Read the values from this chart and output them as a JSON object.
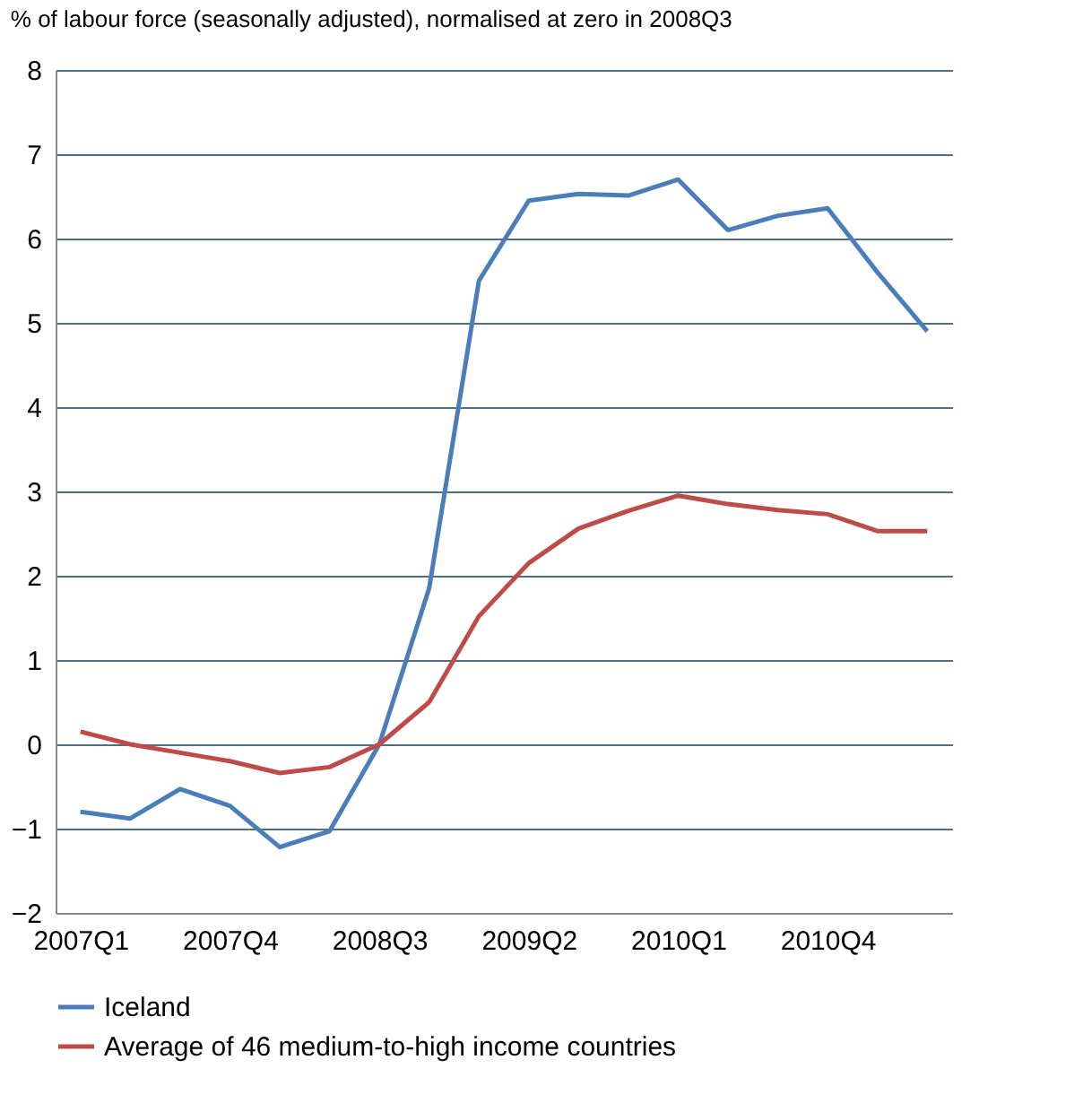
{
  "chart_data": {
    "type": "line",
    "ylabel": "% of labour force (seasonally adjusted), normalised at zero in 2008Q3",
    "categories": [
      "2007Q1",
      null,
      null,
      "2007Q4",
      null,
      null,
      "2008Q3",
      null,
      null,
      "2009Q2",
      null,
      null,
      "2010Q1",
      null,
      null,
      "2010Q4",
      null,
      null
    ],
    "series": [
      {
        "name": "Iceland",
        "color": "#4a7ebb",
        "values": [
          -0.8,
          -0.88,
          -0.53,
          -0.73,
          -1.22,
          -1.03,
          0,
          1.85,
          5.5,
          6.45,
          6.53,
          6.51,
          6.7,
          6.1,
          6.27,
          6.36,
          5.6,
          4.9
        ]
      },
      {
        "name": "Average of 46 medium-to-high income countries",
        "color": "#be4b48",
        "values": [
          0.15,
          0.0,
          -0.1,
          -0.2,
          -0.34,
          -0.27,
          0,
          0.5,
          1.52,
          2.15,
          2.56,
          2.77,
          2.95,
          2.85,
          2.78,
          2.73,
          2.53,
          2.53
        ]
      }
    ],
    "ylim": [
      -2,
      8
    ],
    "yticks": [
      -2,
      -1,
      0,
      1,
      2,
      3,
      4,
      5,
      6,
      7,
      8
    ],
    "grid": "y",
    "legend": "bottom",
    "line_style": "solid",
    "marker": "none"
  }
}
